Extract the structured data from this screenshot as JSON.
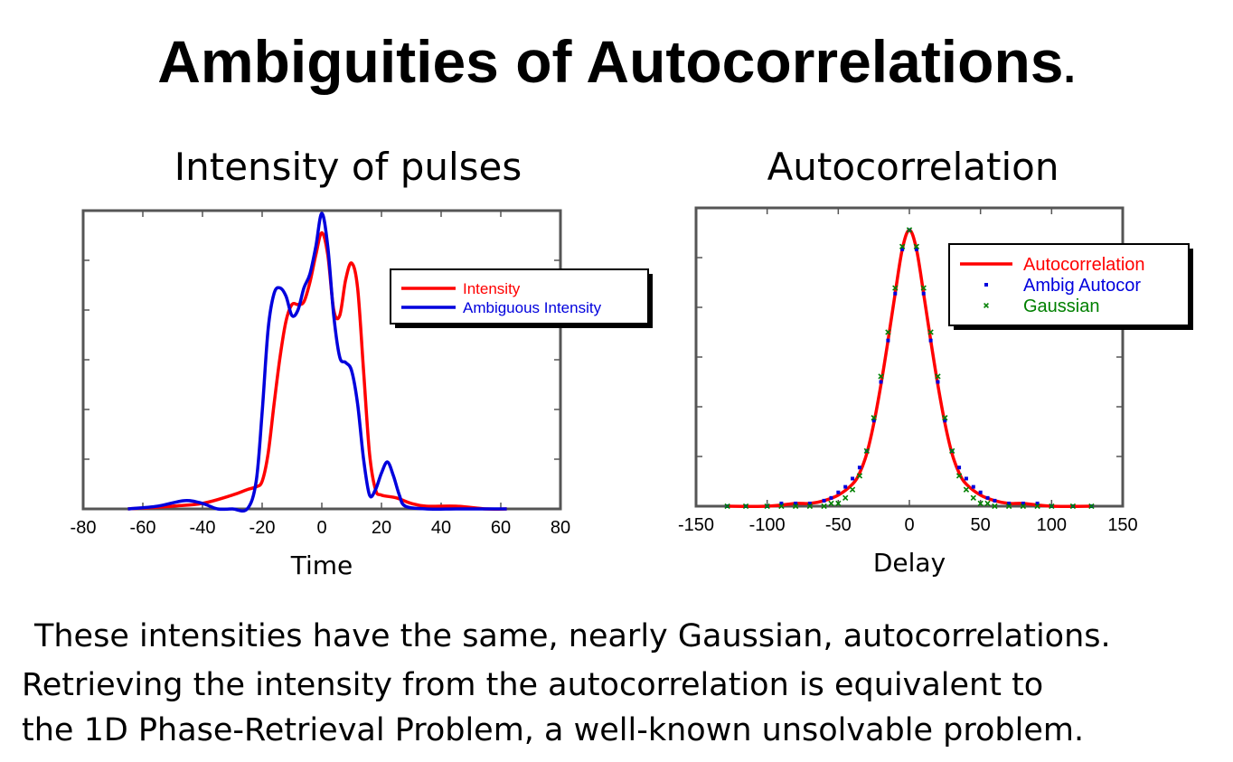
{
  "title": "Ambiguities of Autocorrelations",
  "title_period": ".",
  "left_subtitle": "Intensity of pulses",
  "right_subtitle": "Autocorrelation",
  "caption": {
    "line1": "These intensities have the same, nearly Gaussian, autocorrelations.",
    "line2": "Retrieving the intensity from the autocorrelation is equivalent to",
    "line3": "the 1D Phase-Retrieval Problem, a well-known unsolvable problem."
  },
  "colors": {
    "red": "#ff0000",
    "blue": "#0000dd",
    "green": "#008000"
  },
  "chart_data": [
    {
      "type": "line",
      "xlabel": "Time",
      "ylabel": "",
      "xlim": [
        -80,
        80
      ],
      "ylim": [
        0,
        1.08
      ],
      "xticks": [
        -80,
        -60,
        -40,
        -20,
        0,
        20,
        40,
        60,
        80
      ],
      "grid": false,
      "legend_position": "upper-right",
      "series": [
        {
          "name": "Intensity",
          "color": "#ff0000",
          "x": [
            -65,
            -50,
            -40,
            -30,
            -25,
            -22,
            -20,
            -18,
            -16,
            -14,
            -12,
            -10,
            -8,
            -6,
            -4,
            -2,
            0,
            2,
            4,
            6,
            8,
            10,
            12,
            14,
            16,
            18,
            20,
            25,
            30,
            35,
            45,
            55,
            62
          ],
          "y": [
            0,
            0.01,
            0.02,
            0.05,
            0.07,
            0.08,
            0.1,
            0.2,
            0.38,
            0.55,
            0.68,
            0.74,
            0.74,
            0.75,
            0.82,
            0.92,
            1.0,
            0.92,
            0.72,
            0.7,
            0.83,
            0.89,
            0.8,
            0.5,
            0.2,
            0.07,
            0.05,
            0.04,
            0.02,
            0.01,
            0.01,
            0.0,
            0.0
          ]
        },
        {
          "name": "Ambiguous Intensity",
          "color": "#0000dd",
          "x": [
            -65,
            -55,
            -46,
            -40,
            -35,
            -30,
            -25,
            -22,
            -20,
            -18,
            -16,
            -14,
            -12,
            -10,
            -8,
            -6,
            -4,
            -2,
            0,
            2,
            4,
            6,
            8,
            10,
            12,
            14,
            16,
            18,
            20,
            22,
            24,
            26,
            28,
            35,
            45,
            55,
            62
          ],
          "y": [
            0,
            0.01,
            0.03,
            0.02,
            0.0,
            0.0,
            0.0,
            0.1,
            0.35,
            0.65,
            0.78,
            0.8,
            0.77,
            0.7,
            0.72,
            0.8,
            0.85,
            0.95,
            1.07,
            0.95,
            0.7,
            0.55,
            0.53,
            0.5,
            0.38,
            0.18,
            0.05,
            0.07,
            0.13,
            0.17,
            0.12,
            0.05,
            0.01,
            0.0,
            0.0,
            0.0,
            0.0
          ]
        }
      ]
    },
    {
      "type": "line",
      "xlabel": "Delay",
      "ylabel": "",
      "xlim": [
        -150,
        150
      ],
      "ylim": [
        0,
        1.08
      ],
      "xticks": [
        -150,
        -100,
        -50,
        0,
        50,
        100,
        150
      ],
      "grid": false,
      "legend_position": "upper-right",
      "series": [
        {
          "name": "Autocorrelation",
          "color": "#ff0000",
          "style": "line",
          "x": [
            -128,
            -100,
            -80,
            -70,
            -60,
            -50,
            -40,
            -35,
            -30,
            -25,
            -20,
            -15,
            -10,
            -5,
            0,
            5,
            10,
            15,
            20,
            25,
            30,
            35,
            40,
            50,
            60,
            70,
            80,
            100,
            128
          ],
          "y": [
            0.0,
            0.0,
            0.01,
            0.01,
            0.02,
            0.04,
            0.08,
            0.12,
            0.19,
            0.3,
            0.44,
            0.6,
            0.77,
            0.93,
            1.0,
            0.93,
            0.77,
            0.6,
            0.44,
            0.3,
            0.19,
            0.12,
            0.08,
            0.04,
            0.02,
            0.01,
            0.01,
            0.0,
            0.0
          ]
        },
        {
          "name": "Ambig Autocor",
          "color": "#0000dd",
          "style": "markers",
          "x": [
            -128,
            -115,
            -100,
            -90,
            -80,
            -70,
            -60,
            -55,
            -50,
            -45,
            -40,
            -35,
            -30,
            -25,
            -20,
            -15,
            -10,
            -5,
            0,
            5,
            10,
            15,
            20,
            25,
            30,
            35,
            40,
            45,
            50,
            55,
            60,
            70,
            80,
            90,
            100,
            115,
            128
          ],
          "y": [
            0.0,
            0.0,
            0.0,
            0.01,
            0.01,
            0.01,
            0.02,
            0.03,
            0.05,
            0.07,
            0.1,
            0.14,
            0.2,
            0.31,
            0.45,
            0.6,
            0.77,
            0.93,
            1.0,
            0.93,
            0.77,
            0.6,
            0.45,
            0.31,
            0.2,
            0.14,
            0.1,
            0.07,
            0.05,
            0.03,
            0.02,
            0.01,
            0.01,
            0.01,
            0.0,
            0.0,
            0.0
          ]
        },
        {
          "name": "Gaussian",
          "color": "#008000",
          "style": "markers",
          "x": [
            -128,
            -115,
            -100,
            -90,
            -80,
            -70,
            -60,
            -55,
            -50,
            -45,
            -40,
            -35,
            -30,
            -25,
            -20,
            -15,
            -10,
            -5,
            0,
            5,
            10,
            15,
            20,
            25,
            30,
            35,
            40,
            45,
            50,
            55,
            60,
            70,
            80,
            90,
            100,
            115,
            128
          ],
          "y": [
            0.0,
            0.0,
            0.0,
            0.0,
            0.0,
            0.0,
            0.0,
            0.01,
            0.01,
            0.03,
            0.06,
            0.11,
            0.2,
            0.32,
            0.47,
            0.63,
            0.79,
            0.94,
            1.0,
            0.94,
            0.79,
            0.63,
            0.47,
            0.32,
            0.2,
            0.11,
            0.06,
            0.03,
            0.01,
            0.01,
            0.0,
            0.0,
            0.0,
            0.0,
            0.0,
            0.0,
            0.0
          ]
        }
      ]
    }
  ]
}
